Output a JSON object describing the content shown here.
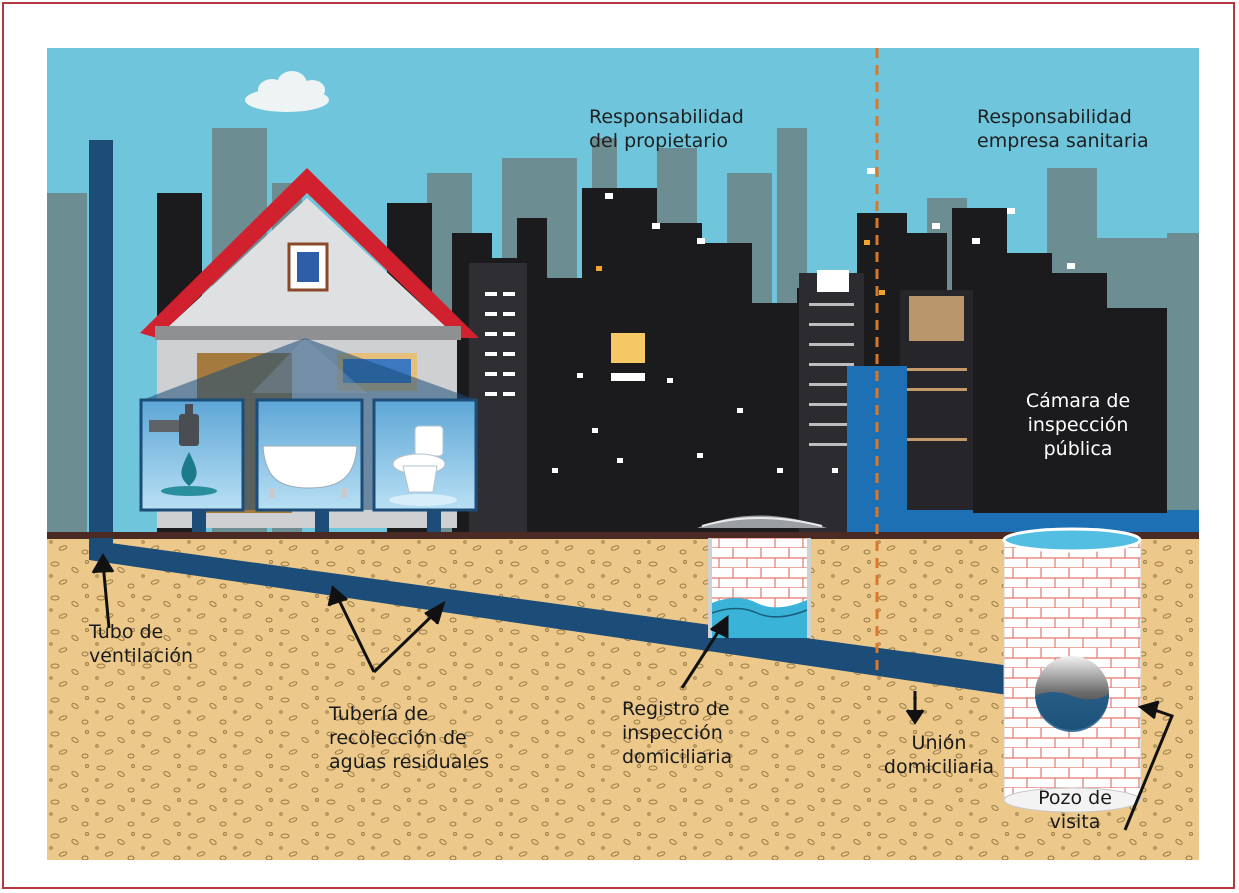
{
  "labels": {
    "owner_resp": [
      "Responsabilidad",
      "del propietario"
    ],
    "company_resp": [
      "Responsabilidad",
      "empresa sanitaria"
    ],
    "public_chamber": [
      "Cámara de",
      "inspección",
      "pública"
    ],
    "vent_pipe": [
      "Tubo de",
      "ventilación"
    ],
    "collection_pipe": [
      "Tubería de",
      "recolección de",
      "aguas residuales"
    ],
    "home_register": [
      "Registro de",
      "inspección",
      "domiciliaria"
    ],
    "home_junction": [
      "Unión",
      "domiciliaria"
    ],
    "manhole": [
      "Pozo de",
      "visita"
    ]
  },
  "colors": {
    "frame": "#b6373f",
    "sky": "#6ec5dc",
    "soil": "#ecc98a",
    "pipe": "#1c4c78",
    "divider": "#d9772a",
    "roof": "#d1202e"
  },
  "icons": [
    "faucet-icon",
    "bathtub-icon",
    "toilet-icon"
  ]
}
